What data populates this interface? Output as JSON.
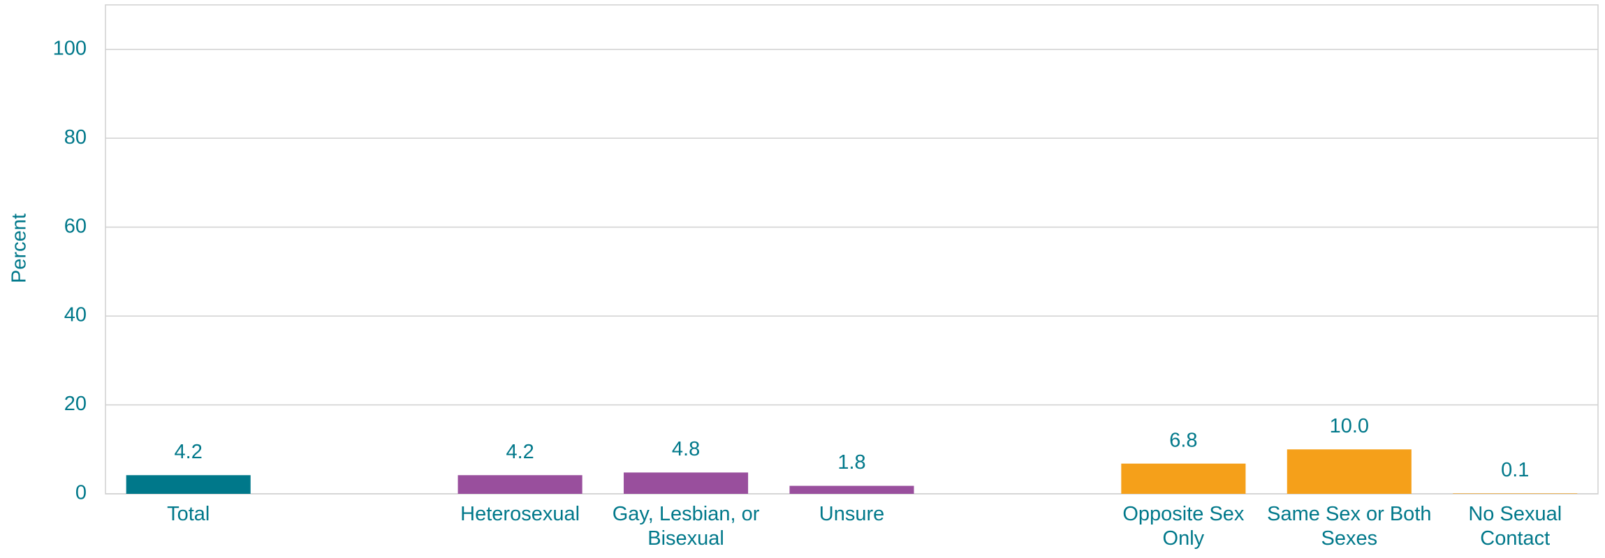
{
  "chart_data": {
    "type": "bar",
    "ylabel": "Percent",
    "categories": [
      "Total",
      null,
      "Heterosexual",
      "Gay, Lesbian, or Bisexual",
      "Unsure",
      null,
      "Opposite Sex Only",
      "Same Sex or Both Sexes",
      "No Sexual Contact"
    ],
    "values": [
      4.2,
      null,
      4.2,
      4.8,
      1.8,
      null,
      6.8,
      10,
      0.1
    ],
    "value_labels": [
      "4.2",
      null,
      "4.2",
      "4.8",
      "1.8",
      null,
      "6.8",
      "10.0",
      "0.1"
    ],
    "colors": [
      "#00788a",
      null,
      "#994f9d",
      "#994f9d",
      "#994f9d",
      null,
      "#f5a01a",
      "#f5a01a",
      "#f5a01a"
    ],
    "ylim": [
      0,
      110
    ],
    "yticks": [
      0,
      20,
      40,
      60,
      80,
      100
    ],
    "grid": true
  }
}
